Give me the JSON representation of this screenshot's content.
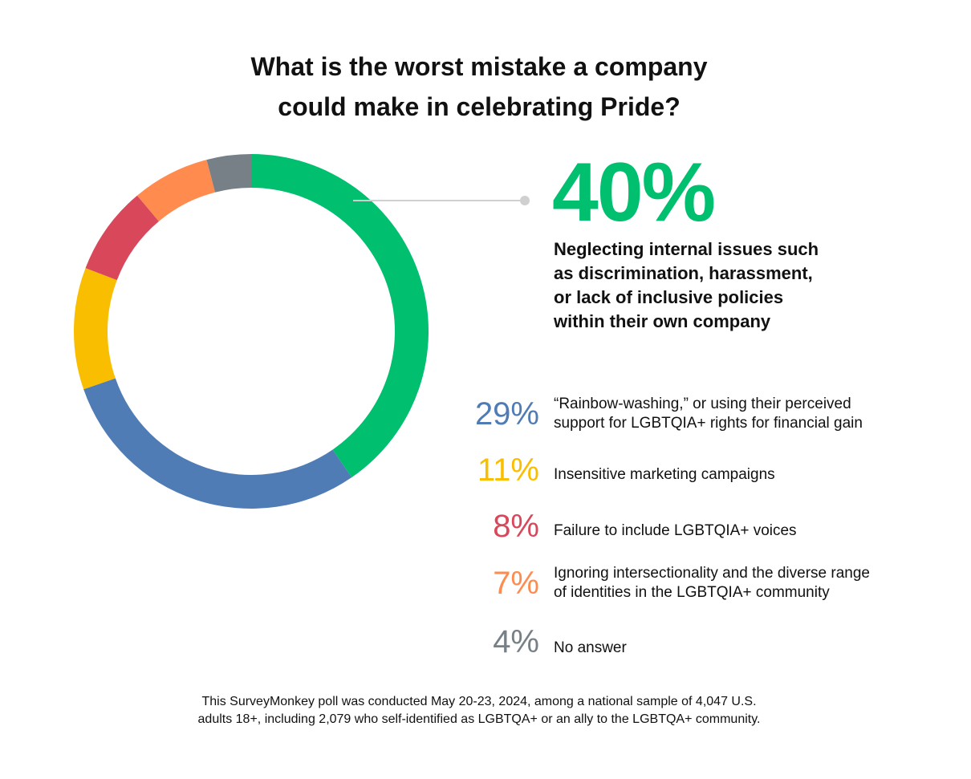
{
  "chart_data": {
    "type": "pie",
    "title": [
      "What is the worst mistake a company",
      "could make in celebrating Pride?"
    ],
    "slices": [
      {
        "value": 40,
        "pct_label": "40%",
        "label_lines": [
          "Neglecting internal issues such",
          "as discrimination, harassment,",
          "or lack of inclusive policies",
          "within their own company"
        ],
        "color": "#00BF6F"
      },
      {
        "value": 29,
        "pct_label": "29%",
        "label_lines": [
          "“Rainbow-washing,” or using their perceived",
          "support for LGBTQIA+ rights for financial gain"
        ],
        "color": "#507CB6"
      },
      {
        "value": 11,
        "pct_label": "11%",
        "label_lines": [
          "Insensitive marketing campaigns"
        ],
        "color": "#F9BE00"
      },
      {
        "value": 8,
        "pct_label": "8%",
        "label_lines": [
          "Failure to include LGBTQIA+ voices"
        ],
        "color": "#D9475B"
      },
      {
        "value": 7,
        "pct_label": "7%",
        "label_lines": [
          "Ignoring intersectionality and the diverse range",
          "of identities in the LGBTQIA+ community"
        ],
        "color": "#FF8B4F"
      },
      {
        "value": 4,
        "pct_label": "4%",
        "label_lines": [
          "No answer"
        ],
        "color": "#768086"
      }
    ],
    "footnote": [
      "This SurveyMonkey poll was conducted May 20-23, 2024, among a national sample of 4,047 U.S.",
      "adults 18+, including 2,079 who self-identified as LGBTQA+ or an ally to the LGBTQA+ community."
    ]
  }
}
